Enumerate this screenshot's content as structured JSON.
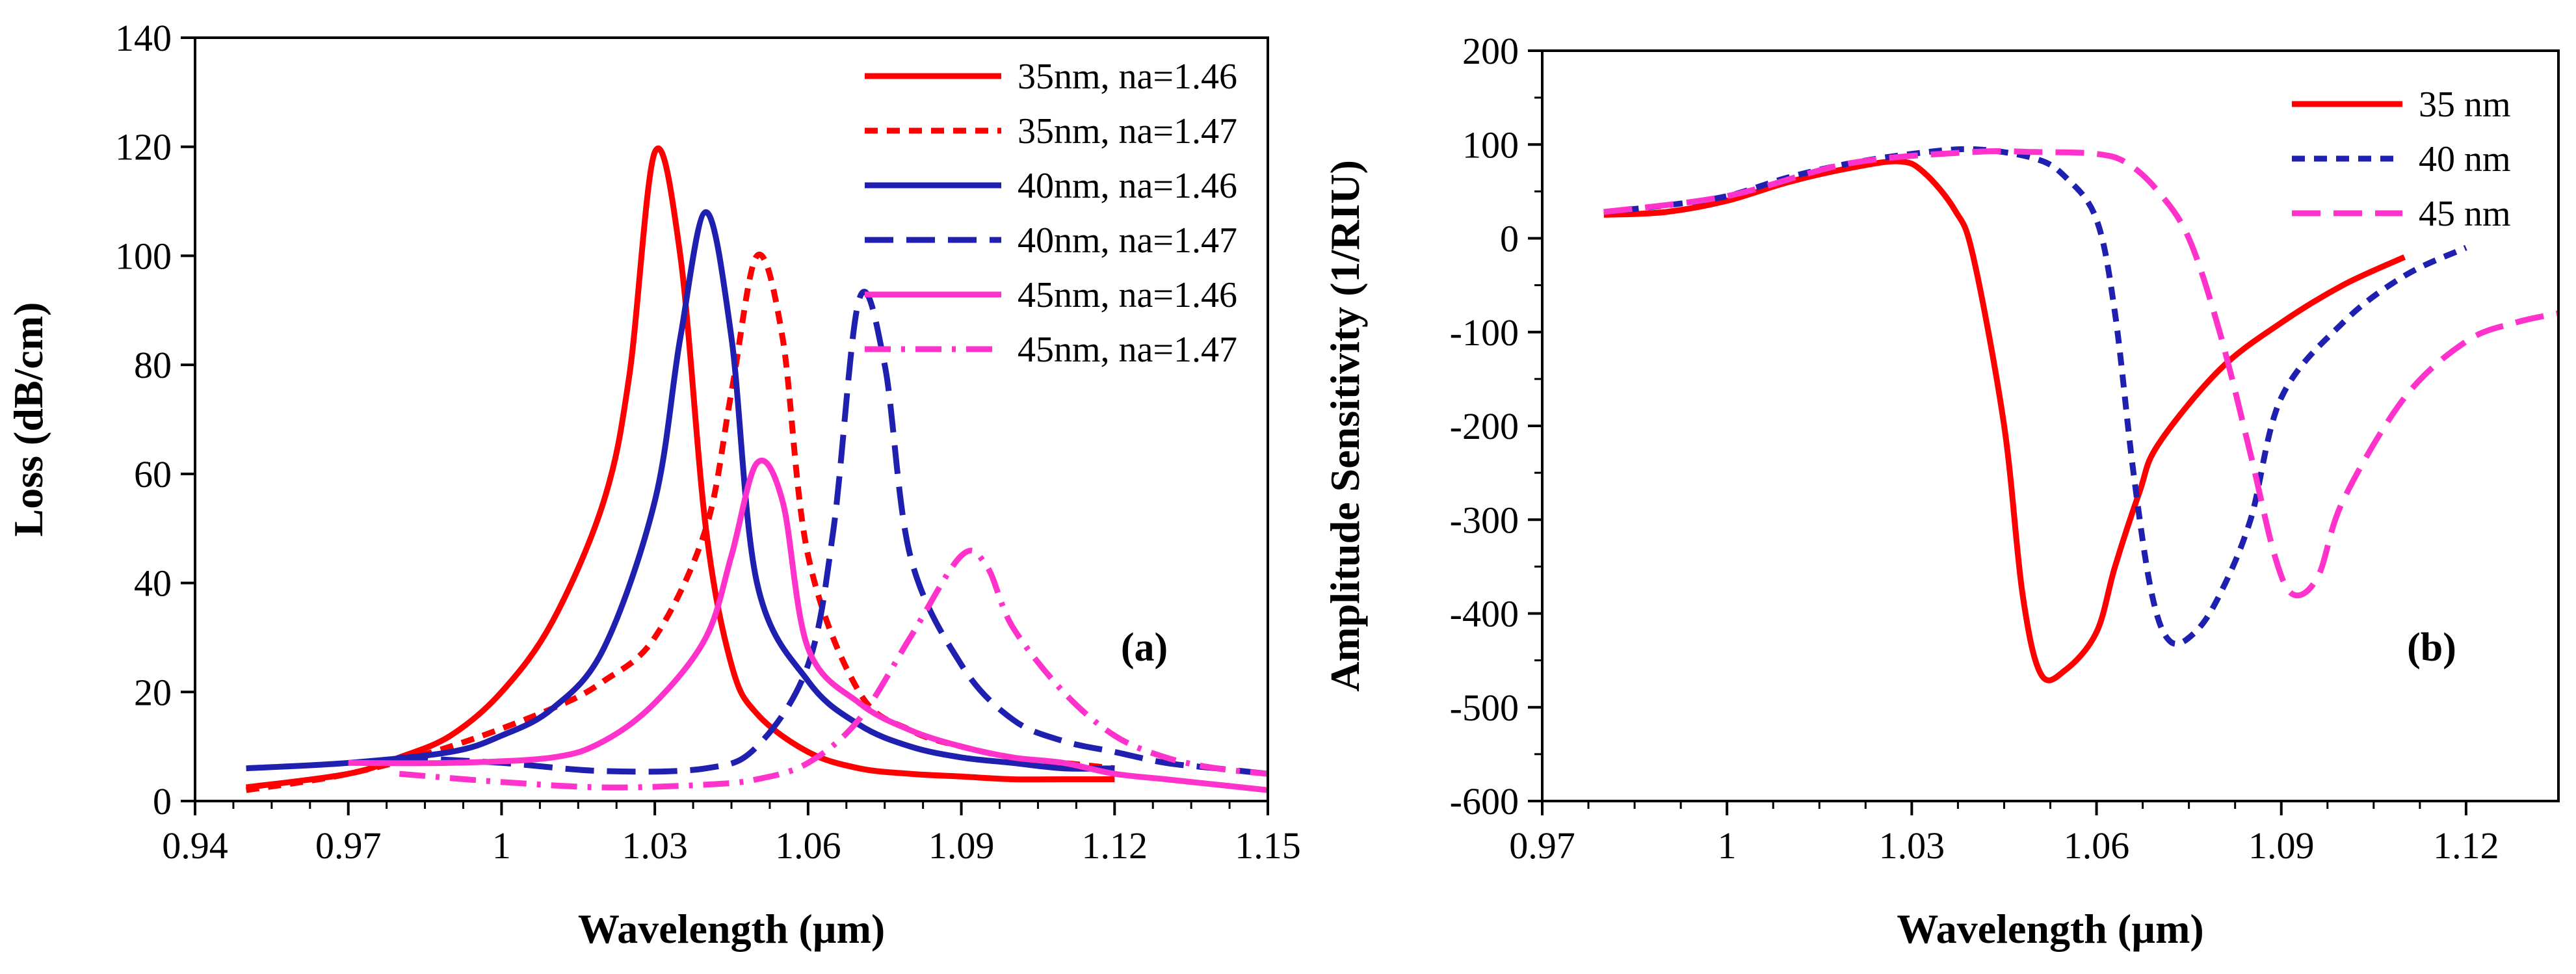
{
  "chart_data": [
    {
      "type": "line",
      "panel_label": "(a)",
      "xlabel": "Wavelength (µm)",
      "ylabel": "Loss (dB/cm)",
      "xlim": [
        0.94,
        1.15
      ],
      "ylim": [
        0,
        140
      ],
      "xticks": [
        0.94,
        0.97,
        1.0,
        1.03,
        1.06,
        1.09,
        1.12,
        1.15
      ],
      "xtick_labels": [
        "0.94",
        "0.97",
        "1",
        "1.03",
        "1.06",
        "1.09",
        "1.12",
        "1.15"
      ],
      "yticks": [
        0,
        20,
        40,
        60,
        80,
        100,
        120,
        140
      ],
      "ytick_labels": [
        "0",
        "20",
        "40",
        "60",
        "80",
        "100",
        "120",
        "140"
      ],
      "legend_position": "top-right",
      "series": [
        {
          "name": "35nm, na=1.46",
          "color": "#ff0000",
          "dash": "solid",
          "points": [
            [
              0.95,
              2.5
            ],
            [
              0.97,
              5
            ],
            [
              0.98,
              8
            ],
            [
              0.99,
              12
            ],
            [
              1.0,
              20
            ],
            [
              1.01,
              33
            ],
            [
              1.02,
              55
            ],
            [
              1.025,
              78
            ],
            [
              1.03,
              119
            ],
            [
              1.035,
              100
            ],
            [
              1.04,
              50
            ],
            [
              1.045,
              25
            ],
            [
              1.05,
              16
            ],
            [
              1.06,
              9
            ],
            [
              1.07,
              6
            ],
            [
              1.08,
              5
            ],
            [
              1.09,
              4.5
            ],
            [
              1.1,
              4
            ],
            [
              1.11,
              4
            ],
            [
              1.12,
              4
            ]
          ]
        },
        {
          "name": "35nm, na=1.47",
          "color": "#ff0000",
          "dash": "short",
          "points": [
            [
              0.95,
              2
            ],
            [
              0.97,
              5
            ],
            [
              0.99,
              10
            ],
            [
              1.01,
              17
            ],
            [
              1.02,
              22
            ],
            [
              1.03,
              30
            ],
            [
              1.04,
              50
            ],
            [
              1.045,
              75
            ],
            [
              1.05,
              100
            ],
            [
              1.055,
              85
            ],
            [
              1.06,
              45
            ],
            [
              1.07,
              20
            ],
            [
              1.08,
              13
            ],
            [
              1.09,
              10
            ],
            [
              1.1,
              8
            ],
            [
              1.11,
              7
            ],
            [
              1.12,
              6
            ]
          ]
        },
        {
          "name": "40nm, na=1.46",
          "color": "#2020b0",
          "dash": "solid",
          "points": [
            [
              0.95,
              6
            ],
            [
              0.97,
              7
            ],
            [
              0.99,
              9
            ],
            [
              1.0,
              12
            ],
            [
              1.01,
              17
            ],
            [
              1.02,
              28
            ],
            [
              1.03,
              55
            ],
            [
              1.035,
              85
            ],
            [
              1.04,
              108
            ],
            [
              1.045,
              85
            ],
            [
              1.05,
              40
            ],
            [
              1.06,
              22
            ],
            [
              1.07,
              14
            ],
            [
              1.08,
              10
            ],
            [
              1.09,
              8
            ],
            [
              1.1,
              7
            ],
            [
              1.11,
              6
            ],
            [
              1.12,
              6
            ]
          ]
        },
        {
          "name": "40nm, na=1.47",
          "color": "#2020b0",
          "dash": "long",
          "points": [
            [
              0.98,
              8
            ],
            [
              1.0,
              7
            ],
            [
              1.02,
              5.5
            ],
            [
              1.04,
              6
            ],
            [
              1.05,
              10
            ],
            [
              1.06,
              25
            ],
            [
              1.065,
              50
            ],
            [
              1.07,
              92
            ],
            [
              1.075,
              80
            ],
            [
              1.08,
              45
            ],
            [
              1.09,
              25
            ],
            [
              1.1,
              15
            ],
            [
              1.11,
              11
            ],
            [
              1.12,
              9
            ],
            [
              1.13,
              7
            ],
            [
              1.14,
              6
            ],
            [
              1.15,
              5
            ]
          ]
        },
        {
          "name": "45nm, na=1.46",
          "color": "#ff33cc",
          "dash": "solid",
          "points": [
            [
              0.97,
              7
            ],
            [
              0.99,
              7
            ],
            [
              1.01,
              8
            ],
            [
              1.02,
              11
            ],
            [
              1.03,
              18
            ],
            [
              1.04,
              30
            ],
            [
              1.045,
              45
            ],
            [
              1.05,
              62
            ],
            [
              1.055,
              55
            ],
            [
              1.06,
              28
            ],
            [
              1.07,
              18
            ],
            [
              1.08,
              13
            ],
            [
              1.09,
              10
            ],
            [
              1.1,
              8
            ],
            [
              1.11,
              7
            ],
            [
              1.12,
              5
            ],
            [
              1.13,
              4
            ],
            [
              1.14,
              3
            ],
            [
              1.15,
              2
            ]
          ]
        },
        {
          "name": "45nm, na=1.47",
          "color": "#ff33cc",
          "dash": "dashdot",
          "points": [
            [
              0.98,
              5
            ],
            [
              1.0,
              3.5
            ],
            [
              1.02,
              2.5
            ],
            [
              1.04,
              3
            ],
            [
              1.05,
              4
            ],
            [
              1.06,
              7
            ],
            [
              1.07,
              15
            ],
            [
              1.08,
              30
            ],
            [
              1.09,
              45
            ],
            [
              1.095,
              43
            ],
            [
              1.1,
              32
            ],
            [
              1.11,
              20
            ],
            [
              1.12,
              12
            ],
            [
              1.13,
              8
            ],
            [
              1.14,
              6
            ],
            [
              1.15,
              5
            ]
          ]
        }
      ]
    },
    {
      "type": "line",
      "panel_label": "(b)",
      "xlabel": "Wavelength (µm)",
      "ylabel": "Amplitude Sensitivity (1/RIU)",
      "xlim": [
        0.97,
        1.135
      ],
      "ylim": [
        -600,
        200
      ],
      "xticks": [
        0.97,
        1.0,
        1.03,
        1.06,
        1.09,
        1.12
      ],
      "xtick_labels": [
        "0.97",
        "1",
        "1.03",
        "1.06",
        "1.09",
        "1.12"
      ],
      "yticks": [
        -600,
        -500,
        -400,
        -300,
        -200,
        -100,
        0,
        100,
        200
      ],
      "ytick_labels": [
        "-600",
        "-500",
        "-400",
        "-300",
        "-200",
        "-100",
        "0",
        "100",
        "200"
      ],
      "legend_position": "top-right",
      "series": [
        {
          "name": "35 nm",
          "color": "#ff0000",
          "dash": "solid",
          "points": [
            [
              0.98,
              25
            ],
            [
              0.99,
              28
            ],
            [
              1.0,
              40
            ],
            [
              1.01,
              60
            ],
            [
              1.02,
              75
            ],
            [
              1.028,
              82
            ],
            [
              1.032,
              70
            ],
            [
              1.037,
              30
            ],
            [
              1.04,
              -20
            ],
            [
              1.045,
              -200
            ],
            [
              1.048,
              -380
            ],
            [
              1.051,
              -465
            ],
            [
              1.055,
              -460
            ],
            [
              1.06,
              -420
            ],
            [
              1.063,
              -350
            ],
            [
              1.067,
              -270
            ],
            [
              1.07,
              -220
            ],
            [
              1.08,
              -140
            ],
            [
              1.09,
              -90
            ],
            [
              1.1,
              -50
            ],
            [
              1.11,
              -20
            ]
          ]
        },
        {
          "name": "40 nm",
          "color": "#2020b0",
          "dash": "short",
          "points": [
            [
              0.98,
              28
            ],
            [
              0.99,
              35
            ],
            [
              1.0,
              45
            ],
            [
              1.01,
              65
            ],
            [
              1.02,
              80
            ],
            [
              1.03,
              90
            ],
            [
              1.04,
              95
            ],
            [
              1.05,
              85
            ],
            [
              1.055,
              65
            ],
            [
              1.06,
              20
            ],
            [
              1.063,
              -80
            ],
            [
              1.066,
              -250
            ],
            [
              1.069,
              -380
            ],
            [
              1.072,
              -430
            ],
            [
              1.076,
              -420
            ],
            [
              1.08,
              -380
            ],
            [
              1.085,
              -300
            ],
            [
              1.09,
              -170
            ],
            [
              1.1,
              -90
            ],
            [
              1.11,
              -40
            ],
            [
              1.12,
              -10
            ]
          ]
        },
        {
          "name": "45 nm",
          "color": "#ff33cc",
          "dash": "long",
          "points": [
            [
              0.98,
              28
            ],
            [
              1.0,
              45
            ],
            [
              1.02,
              80
            ],
            [
              1.04,
              92
            ],
            [
              1.05,
              92
            ],
            [
              1.06,
              90
            ],
            [
              1.065,
              80
            ],
            [
              1.07,
              50
            ],
            [
              1.075,
              0
            ],
            [
              1.08,
              -100
            ],
            [
              1.085,
              -230
            ],
            [
              1.089,
              -340
            ],
            [
              1.092,
              -380
            ],
            [
              1.096,
              -360
            ],
            [
              1.1,
              -280
            ],
            [
              1.11,
              -170
            ],
            [
              1.12,
              -110
            ],
            [
              1.128,
              -90
            ],
            [
              1.135,
              -80
            ]
          ]
        }
      ]
    }
  ]
}
